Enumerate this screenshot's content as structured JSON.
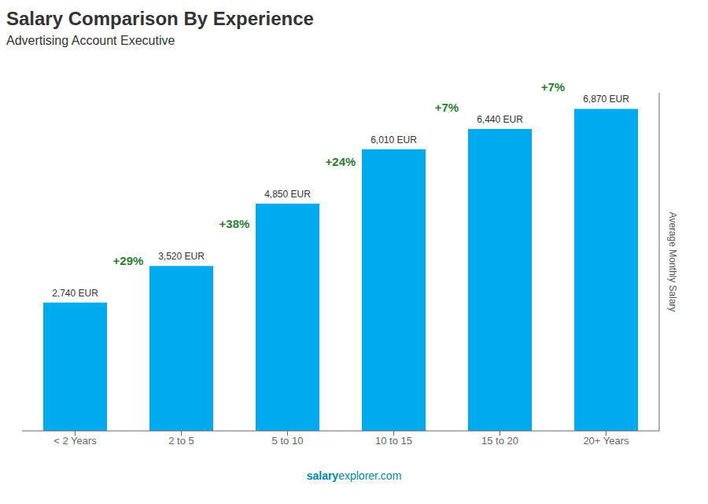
{
  "chart_data": {
    "type": "bar",
    "title": "Salary Comparison By Experience",
    "subtitle": "Advertising Account Executive",
    "categories": [
      "< 2 Years",
      "2 to 5",
      "5 to 10",
      "10 to 15",
      "15 to 20",
      "20+ Years"
    ],
    "values": [
      2740,
      3520,
      4850,
      6010,
      6440,
      6870
    ],
    "value_labels": [
      "2,740 EUR",
      "3,520 EUR",
      "4,850 EUR",
      "6,010 EUR",
      "6,440 EUR",
      "6,870 EUR"
    ],
    "data_labels": true,
    "color": "#00aaee",
    "ylabel": "Average Monthly Salary",
    "ylim": [
      0,
      7213.5
    ],
    "tick_labels": "x",
    "grid": false,
    "annotations": [
      "+29%",
      "+38%",
      "+24%",
      "+7%",
      "+7%"
    ],
    "footer": [
      "salary",
      "explorer.com"
    ]
  }
}
